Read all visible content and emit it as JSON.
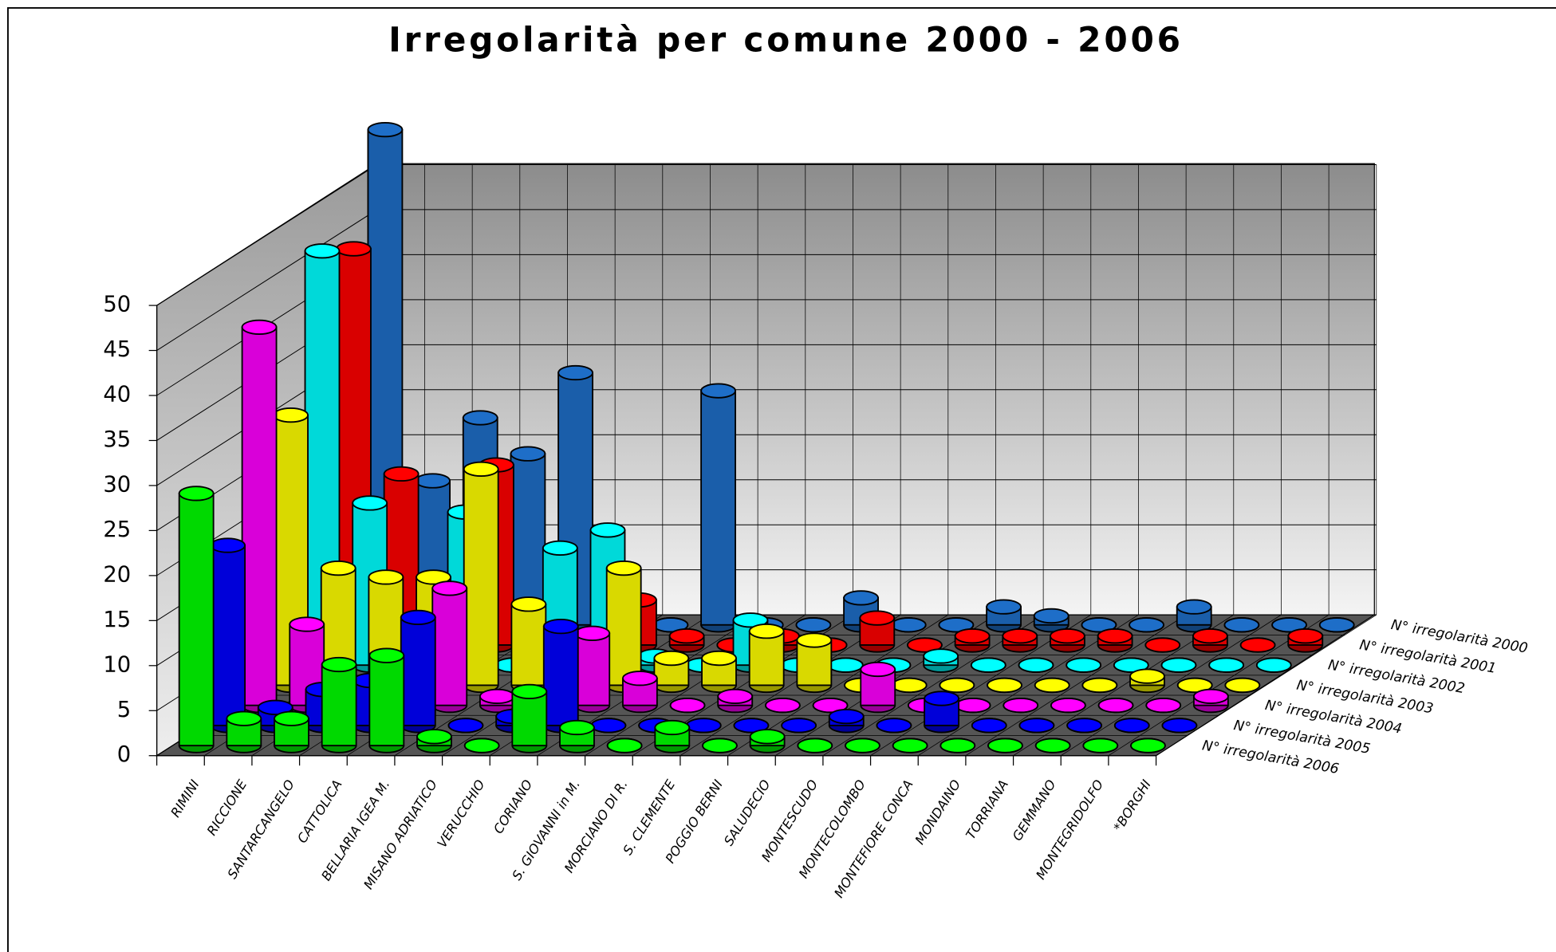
{
  "chart_data": {
    "type": "bar3d",
    "title": "Irregolarità per comune 2000 - 2006",
    "categories": [
      "RIMINI",
      "RICCIONE",
      "SANTARCANGELO",
      "CATTOLICA",
      "BELLARIA IGEA M.",
      "MISANO ADRIATICO",
      "VERUCCHIO",
      "CORIANO",
      "S. GIOVANNI in M.",
      "MORCIANO DI R.",
      "S. CLEMENTE",
      "POGGIO BERNI",
      "SALUDECIO",
      "MONTESCUDO",
      "MONTECOLOMBO",
      "MONTEFIORE CONCA",
      "MONDAINO",
      "TORRIANA",
      "GEMMANO",
      "MONTEGRIDOLFO",
      "*BORGHI"
    ],
    "series": [
      {
        "name": "N° irregolarità 2000",
        "color": "#1e6ec8",
        "values": [
          55,
          16,
          23,
          19,
          28,
          0,
          0,
          26,
          0,
          0,
          3,
          0,
          0,
          2,
          1,
          0,
          0,
          2,
          0,
          0,
          0
        ]
      },
      {
        "name": "N° irregolarità 2001",
        "color": "#ff0000",
        "values": [
          44,
          19,
          0,
          20,
          3,
          0,
          5,
          1,
          0,
          1,
          0,
          3,
          0,
          1,
          1,
          1,
          1,
          0,
          1,
          0,
          1
        ]
      },
      {
        "name": "N° irregolarità 2002",
        "color": "#00ffff",
        "values": [
          46,
          18,
          0,
          17,
          0,
          13,
          15,
          1,
          0,
          5,
          0,
          0,
          0,
          1,
          0,
          0,
          0,
          0,
          0,
          0,
          0
        ]
      },
      {
        "name": "N° irregolarità 2003",
        "color": "#ffff00",
        "values": [
          30,
          13,
          12,
          12,
          24,
          9,
          0,
          13,
          3,
          3,
          6,
          5,
          0,
          0,
          0,
          0,
          0,
          0,
          1,
          0,
          0
        ]
      },
      {
        "name": "N° irregolarità 2004",
        "color": "#ff00ff",
        "values": [
          42,
          9,
          0,
          0,
          13,
          1,
          0,
          8,
          3,
          0,
          1,
          0,
          0,
          4,
          0,
          0,
          0,
          0,
          0,
          0,
          1
        ]
      },
      {
        "name": "N° irregolarità 2005",
        "color": "#0000ff",
        "values": [
          20,
          2,
          4,
          5,
          12,
          0,
          1,
          11,
          0,
          0,
          0,
          0,
          0,
          1,
          0,
          3,
          0,
          0,
          0,
          0,
          0
        ]
      },
      {
        "name": "N° irregolarità 2006",
        "color": "#00ff00",
        "values": [
          28,
          3,
          3,
          9,
          10,
          1,
          0,
          6,
          2,
          0,
          2,
          0,
          1,
          0,
          0,
          0,
          0,
          0,
          0,
          0,
          0
        ]
      }
    ],
    "ylim": [
      0,
      50
    ],
    "yticks": [
      0,
      5,
      10,
      15,
      20,
      25,
      30,
      35,
      40,
      45,
      50
    ],
    "grid": true
  }
}
